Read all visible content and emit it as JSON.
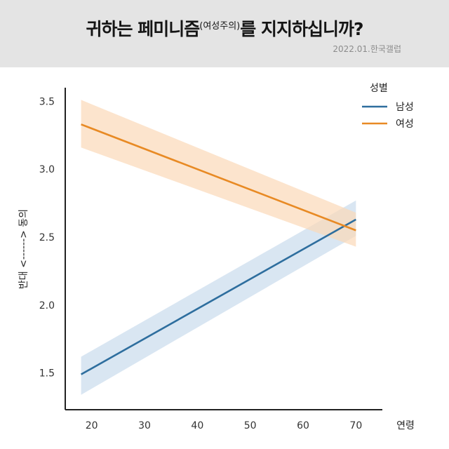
{
  "header": {
    "title_main": "귀하는 페미니즘",
    "title_sup": "(여성주의)",
    "title_end": "를 지지하십니까?",
    "source": "2022.01.한국갤럽"
  },
  "chart_data": {
    "type": "line",
    "xlabel": "연령",
    "ylabel": "반대 <------> 동의",
    "xlim": [
      15,
      75
    ],
    "ylim": [
      1.23,
      3.6
    ],
    "xticks": [
      "20",
      "30",
      "40",
      "50",
      "60",
      "70"
    ],
    "xtick_values": [
      20,
      30,
      40,
      50,
      60,
      70
    ],
    "yticks": [
      "1.5",
      "2.0",
      "2.5",
      "3.0",
      "3.5"
    ],
    "ytick_values": [
      1.5,
      2.0,
      2.5,
      3.0,
      3.5
    ],
    "legend": {
      "title": "성별",
      "position": "top-right"
    },
    "grid": false,
    "series": [
      {
        "name": "남성",
        "color": "#2e6e9e",
        "band_color": "#c9dcec",
        "x": [
          18,
          70
        ],
        "values": [
          1.49,
          2.63
        ],
        "ci_lower": [
          1.34,
          2.51
        ],
        "ci_upper": [
          1.62,
          2.77
        ]
      },
      {
        "name": "여성",
        "color": "#e88a24",
        "band_color": "#fbd9b8",
        "x": [
          18,
          70
        ],
        "values": [
          3.33,
          2.55
        ],
        "ci_lower": [
          3.16,
          2.43
        ],
        "ci_upper": [
          3.51,
          2.68
        ]
      }
    ]
  }
}
